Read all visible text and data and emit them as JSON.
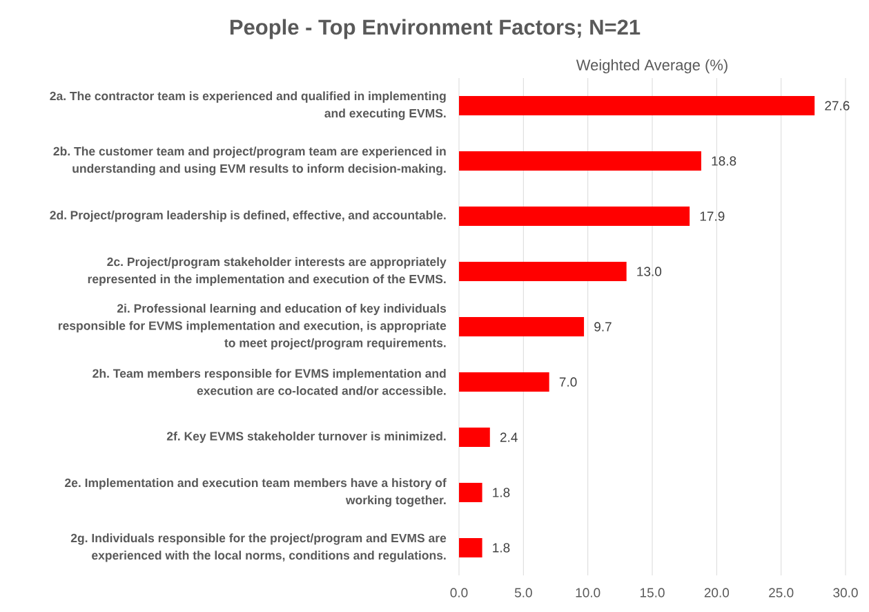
{
  "chart_data": {
    "type": "bar",
    "orientation": "horizontal",
    "title": "People - Top Environment Factors; N=21",
    "xlabel": "Weighted Average (%)",
    "categories": [
      "2a. The contractor team is experienced and qualified in implementing and executing EVMS.",
      "2b. The customer team and project/program team are experienced in understanding and using EVM results to inform decision-making.",
      "2d. Project/program leadership is defined, effective, and accountable.",
      "2c. Project/program stakeholder interests are appropriately represented in the implementation and execution of the EVMS.",
      "2i. Professional learning and education of key individuals responsible for EVMS implementation and execution, is appropriate to meet project/program requirements.",
      "2h. Team members responsible for EVMS implementation and execution are co-located and/or accessible.",
      "2f. Key EVMS stakeholder turnover is minimized.",
      "2e. Implementation and execution team members have a history of working together.",
      "2g. Individuals responsible for the project/program and EVMS are experienced with the local norms, conditions and regulations."
    ],
    "values": [
      27.6,
      18.8,
      17.9,
      13.0,
      9.7,
      7.0,
      2.4,
      1.8,
      1.8
    ],
    "value_labels": [
      "27.6",
      "18.8",
      "17.9",
      "13.0",
      "9.7",
      "7.0",
      "2.4",
      "1.8",
      "1.8"
    ],
    "color": "#ff0000",
    "xlim": [
      0,
      30
    ],
    "xticks": [
      {
        "value": 0,
        "label": "0.0"
      },
      {
        "value": 5,
        "label": "5.0"
      },
      {
        "value": 10,
        "label": "10.0"
      },
      {
        "value": 15,
        "label": "15.0"
      },
      {
        "value": 20,
        "label": "20.0"
      },
      {
        "value": 25,
        "label": "25.0"
      },
      {
        "value": 30,
        "label": "30.0"
      }
    ],
    "grid": "x"
  }
}
